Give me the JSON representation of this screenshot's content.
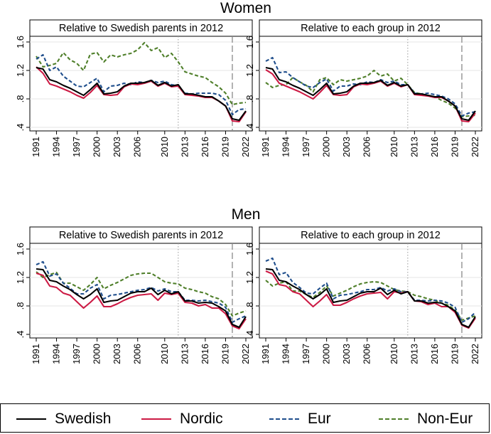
{
  "sections": [
    {
      "title": "Women"
    },
    {
      "title": "Men"
    }
  ],
  "legend": [
    {
      "name": "Swedish",
      "color": "#000000",
      "style": "solid"
    },
    {
      "name": "Nordic",
      "color": "#cc1a44",
      "style": "solid"
    },
    {
      "name": "Eur",
      "color": "#1f4e8c",
      "style": "dashed"
    },
    {
      "name": "Non-Eur",
      "color": "#4f7f2a",
      "style": "dashed"
    }
  ],
  "chart_data": [
    {
      "type": "line",
      "group": "Women",
      "title": "Relative to Swedish parents in 2012",
      "x": [
        1991,
        1992,
        1993,
        1994,
        1995,
        1996,
        1997,
        1998,
        1999,
        2000,
        2001,
        2002,
        2003,
        2004,
        2005,
        2006,
        2007,
        2008,
        2009,
        2010,
        2011,
        2012,
        2013,
        2014,
        2015,
        2016,
        2017,
        2018,
        2019,
        2020,
        2021,
        2022
      ],
      "xticks": [
        1991,
        1994,
        1997,
        2000,
        2003,
        2006,
        2010,
        2013,
        2016,
        2019,
        2022
      ],
      "yticks": [
        0.4,
        0.8,
        1.2,
        1.6
      ],
      "ytick_labels": [
        ".4",
        ".8",
        "1.2",
        "1.6"
      ],
      "ylim": [
        0.35,
        1.68
      ],
      "vlines": [
        {
          "x": 2012,
          "style": "dotted"
        },
        {
          "x": 2020,
          "style": "dashed"
        }
      ],
      "series": [
        {
          "name": "Swedish",
          "values": [
            1.24,
            1.22,
            1.07,
            1.04,
            0.99,
            0.95,
            0.9,
            0.85,
            0.93,
            1.02,
            0.87,
            0.88,
            0.9,
            0.98,
            1.02,
            1.02,
            1.03,
            1.06,
            0.99,
            1.03,
            0.98,
            1.0,
            0.87,
            0.87,
            0.85,
            0.83,
            0.83,
            0.77,
            0.7,
            0.52,
            0.5,
            0.63
          ]
        },
        {
          "name": "Nordic",
          "values": [
            1.25,
            1.16,
            1.01,
            0.98,
            0.94,
            0.9,
            0.85,
            0.81,
            0.89,
            0.99,
            0.86,
            0.85,
            0.86,
            0.97,
            1.01,
            1.0,
            1.02,
            1.05,
            0.98,
            1.02,
            0.97,
            0.98,
            0.86,
            0.85,
            0.84,
            0.82,
            0.82,
            0.77,
            0.7,
            0.49,
            0.48,
            0.62
          ]
        },
        {
          "name": "Eur",
          "values": [
            1.36,
            1.42,
            1.2,
            1.25,
            1.12,
            1.05,
            0.98,
            0.97,
            1.03,
            1.09,
            0.9,
            0.98,
            0.99,
            1.02,
            1.0,
            1.04,
            1.03,
            1.06,
            1.03,
            1.05,
            1.0,
            0.98,
            0.88,
            0.87,
            0.88,
            0.88,
            0.88,
            0.86,
            0.78,
            0.58,
            0.65,
            0.66
          ]
        },
        {
          "name": "Non-Eur",
          "values": [
            1.4,
            1.25,
            1.27,
            1.3,
            1.45,
            1.35,
            1.3,
            1.2,
            1.43,
            1.45,
            1.32,
            1.42,
            1.39,
            1.42,
            1.44,
            1.49,
            1.59,
            1.48,
            1.52,
            1.38,
            1.44,
            1.32,
            1.18,
            1.15,
            1.12,
            1.1,
            1.03,
            0.97,
            0.88,
            0.72,
            0.74,
            0.75
          ]
        }
      ]
    },
    {
      "type": "line",
      "group": "Women",
      "title": "Relative to each group in 2012",
      "x": [
        1991,
        1992,
        1993,
        1994,
        1995,
        1996,
        1997,
        1998,
        1999,
        2000,
        2001,
        2002,
        2003,
        2004,
        2005,
        2006,
        2007,
        2008,
        2009,
        2010,
        2011,
        2012,
        2013,
        2014,
        2015,
        2016,
        2017,
        2018,
        2019,
        2020,
        2021,
        2022
      ],
      "xticks": [
        1991,
        1994,
        1997,
        2000,
        2003,
        2006,
        2010,
        2013,
        2016,
        2019,
        2022
      ],
      "yticks": [
        0.4,
        0.8,
        1.2,
        1.6
      ],
      "ytick_labels": [
        ".4",
        ".8",
        "1.2",
        "1.6"
      ],
      "ylim": [
        0.35,
        1.68
      ],
      "vlines": [
        {
          "x": 2012,
          "style": "dotted"
        },
        {
          "x": 2020,
          "style": "dashed"
        }
      ],
      "series": [
        {
          "name": "Swedish",
          "values": [
            1.24,
            1.22,
            1.07,
            1.04,
            0.99,
            0.95,
            0.9,
            0.85,
            0.93,
            1.02,
            0.87,
            0.88,
            0.9,
            0.98,
            1.02,
            1.02,
            1.03,
            1.06,
            0.99,
            1.03,
            0.98,
            1.0,
            0.87,
            0.87,
            0.85,
            0.83,
            0.83,
            0.77,
            0.7,
            0.52,
            0.5,
            0.63
          ]
        },
        {
          "name": "Nordic",
          "values": [
            1.21,
            1.15,
            1.02,
            0.98,
            0.94,
            0.9,
            0.85,
            0.8,
            0.89,
            0.99,
            0.86,
            0.85,
            0.86,
            0.97,
            1.01,
            1.0,
            1.02,
            1.05,
            0.98,
            1.02,
            0.97,
            1.0,
            0.86,
            0.85,
            0.84,
            0.82,
            0.82,
            0.77,
            0.7,
            0.49,
            0.48,
            0.6
          ]
        },
        {
          "name": "Eur",
          "values": [
            1.33,
            1.38,
            1.17,
            1.18,
            1.1,
            1.04,
            0.98,
            0.96,
            1.03,
            1.08,
            0.91,
            0.98,
            0.98,
            1.01,
            1.0,
            1.04,
            1.03,
            1.07,
            1.03,
            1.05,
            1.0,
            1.0,
            0.88,
            0.87,
            0.88,
            0.86,
            0.84,
            0.8,
            0.73,
            0.56,
            0.6,
            0.62
          ]
        },
        {
          "name": "Non-Eur",
          "values": [
            1.03,
            0.96,
            0.99,
            1.0,
            1.1,
            1.04,
            0.99,
            0.9,
            1.07,
            1.1,
            1.0,
            1.07,
            1.05,
            1.07,
            1.09,
            1.12,
            1.2,
            1.12,
            1.15,
            1.05,
            1.09,
            1.0,
            0.89,
            0.87,
            0.85,
            0.83,
            0.78,
            0.74,
            0.67,
            0.55,
            0.56,
            0.57
          ]
        }
      ]
    },
    {
      "type": "line",
      "group": "Men",
      "title": "Relative to Swedish parents in 2012",
      "x": [
        1991,
        1992,
        1993,
        1994,
        1995,
        1996,
        1997,
        1998,
        1999,
        2000,
        2001,
        2002,
        2003,
        2004,
        2005,
        2006,
        2007,
        2008,
        2009,
        2010,
        2011,
        2012,
        2013,
        2014,
        2015,
        2016,
        2017,
        2018,
        2019,
        2020,
        2021,
        2022
      ],
      "xticks": [
        1991,
        1994,
        1997,
        2000,
        2003,
        2006,
        2010,
        2013,
        2016,
        2019,
        2022
      ],
      "yticks": [
        0.4,
        0.8,
        1.2,
        1.6
      ],
      "ytick_labels": [
        ".4",
        ".8",
        "1.2",
        "1.6"
      ],
      "ylim": [
        0.35,
        1.68
      ],
      "vlines": [
        {
          "x": 2012,
          "style": "dotted"
        },
        {
          "x": 2020,
          "style": "dashed"
        }
      ],
      "series": [
        {
          "name": "Swedish",
          "values": [
            1.32,
            1.31,
            1.16,
            1.14,
            1.08,
            1.03,
            0.96,
            0.9,
            0.96,
            1.04,
            0.85,
            0.87,
            0.88,
            0.93,
            0.98,
            1.0,
            1.0,
            1.05,
            0.96,
            1.02,
            0.97,
            1.0,
            0.87,
            0.87,
            0.84,
            0.85,
            0.84,
            0.79,
            0.73,
            0.54,
            0.5,
            0.65
          ]
        },
        {
          "name": "Nordic",
          "values": [
            1.26,
            1.23,
            1.08,
            1.06,
            0.98,
            0.95,
            0.86,
            0.77,
            0.85,
            0.94,
            0.79,
            0.79,
            0.83,
            0.88,
            0.92,
            0.95,
            0.96,
            0.97,
            0.88,
            0.98,
            0.96,
            0.98,
            0.85,
            0.84,
            0.8,
            0.82,
            0.77,
            0.77,
            0.69,
            0.52,
            0.48,
            0.62
          ]
        },
        {
          "name": "Eur",
          "values": [
            1.38,
            1.42,
            1.22,
            1.25,
            1.12,
            1.05,
            0.97,
            0.97,
            1.05,
            1.1,
            0.9,
            0.95,
            0.96,
            0.98,
            1.0,
            1.02,
            1.03,
            1.06,
            1.01,
            1.04,
            1.0,
            1.0,
            0.88,
            0.88,
            0.87,
            0.88,
            0.86,
            0.84,
            0.78,
            0.57,
            0.62,
            0.66
          ]
        },
        {
          "name": "Non-Eur",
          "values": [
            1.28,
            1.2,
            1.24,
            1.27,
            1.12,
            1.12,
            1.07,
            1.02,
            1.1,
            1.2,
            1.04,
            1.09,
            1.13,
            1.18,
            1.23,
            1.25,
            1.26,
            1.26,
            1.2,
            1.14,
            1.12,
            1.11,
            1.05,
            1.03,
            1.0,
            0.98,
            0.93,
            0.9,
            0.82,
            0.66,
            0.7,
            0.73
          ]
        }
      ]
    },
    {
      "type": "line",
      "group": "Men",
      "title": "Relative to each group in 2012",
      "x": [
        1991,
        1992,
        1993,
        1994,
        1995,
        1996,
        1997,
        1998,
        1999,
        2000,
        2001,
        2002,
        2003,
        2004,
        2005,
        2006,
        2007,
        2008,
        2009,
        2010,
        2011,
        2012,
        2013,
        2014,
        2015,
        2016,
        2017,
        2018,
        2019,
        2020,
        2021,
        2022
      ],
      "xticks": [
        1991,
        1994,
        1997,
        2000,
        2003,
        2006,
        2010,
        2013,
        2016,
        2019,
        2022
      ],
      "yticks": [
        0.4,
        0.8,
        1.2,
        1.6
      ],
      "ytick_labels": [
        ".4",
        ".8",
        "1.2",
        "1.6"
      ],
      "ylim": [
        0.35,
        1.68
      ],
      "vlines": [
        {
          "x": 2012,
          "style": "dotted"
        },
        {
          "x": 2020,
          "style": "dashed"
        }
      ],
      "series": [
        {
          "name": "Swedish",
          "values": [
            1.32,
            1.31,
            1.16,
            1.14,
            1.08,
            1.03,
            0.96,
            0.9,
            0.96,
            1.04,
            0.85,
            0.87,
            0.88,
            0.93,
            0.98,
            1.0,
            1.0,
            1.05,
            0.96,
            1.02,
            0.97,
            1.0,
            0.87,
            0.87,
            0.84,
            0.85,
            0.84,
            0.79,
            0.73,
            0.54,
            0.5,
            0.65
          ]
        },
        {
          "name": "Nordic",
          "values": [
            1.29,
            1.25,
            1.1,
            1.08,
            1.0,
            0.97,
            0.88,
            0.79,
            0.87,
            0.96,
            0.81,
            0.81,
            0.85,
            0.9,
            0.94,
            0.97,
            0.98,
            0.99,
            0.9,
            1.0,
            0.98,
            1.0,
            0.87,
            0.86,
            0.82,
            0.84,
            0.79,
            0.79,
            0.71,
            0.53,
            0.49,
            0.63
          ]
        },
        {
          "name": "Eur",
          "values": [
            1.43,
            1.47,
            1.24,
            1.27,
            1.13,
            1.06,
            0.98,
            0.97,
            1.05,
            1.12,
            0.9,
            0.95,
            0.96,
            0.98,
            1.0,
            1.03,
            1.03,
            1.06,
            1.01,
            1.04,
            1.0,
            1.0,
            0.88,
            0.88,
            0.87,
            0.88,
            0.87,
            0.84,
            0.78,
            0.57,
            0.62,
            0.71
          ]
        },
        {
          "name": "Non-Eur",
          "values": [
            1.16,
            1.08,
            1.12,
            1.14,
            1.01,
            1.01,
            0.96,
            0.92,
            0.99,
            1.08,
            0.94,
            0.98,
            1.02,
            1.07,
            1.11,
            1.13,
            1.14,
            1.13,
            1.08,
            1.03,
            1.01,
            1.0,
            0.95,
            0.93,
            0.9,
            0.88,
            0.84,
            0.81,
            0.74,
            0.6,
            0.63,
            0.66
          ]
        }
      ]
    }
  ]
}
